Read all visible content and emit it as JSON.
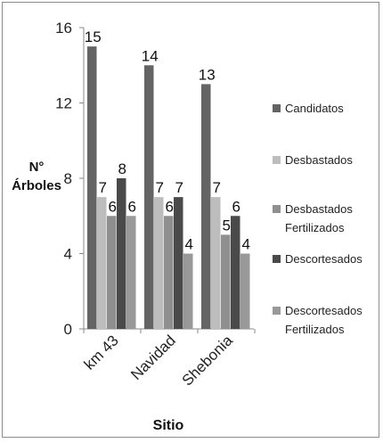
{
  "chart_data": {
    "type": "bar",
    "title": "",
    "xlabel": "Sitio",
    "ylabel": "N° Árboles",
    "ylabel_lines": [
      "N°",
      "Árboles"
    ],
    "categories": [
      "km 43",
      "Navidad",
      "Shebonia"
    ],
    "ylim": [
      0,
      16
    ],
    "yticks": [
      0,
      4,
      8,
      12,
      16
    ],
    "grid": false,
    "legend_position": "right",
    "series": [
      {
        "name": "Candidatos",
        "legend_lines": [
          "Candidatos"
        ],
        "color": "#646464",
        "values": [
          15,
          14,
          13
        ]
      },
      {
        "name": "Desbastados",
        "legend_lines": [
          "Desbastados"
        ],
        "color": "#bdbdbd",
        "values": [
          7,
          7,
          7
        ]
      },
      {
        "name": "Desbastados Fertilizados",
        "legend_lines": [
          "Desbastados",
          "Fertilizados"
        ],
        "color": "#8f8f8f",
        "values": [
          6,
          6,
          5
        ]
      },
      {
        "name": "Descortesados",
        "legend_lines": [
          "Descortesados"
        ],
        "color": "#4a4a4a",
        "values": [
          8,
          7,
          6
        ]
      },
      {
        "name": "Descortesados Fertilizados",
        "legend_lines": [
          "Descortesados",
          "Fertilizados"
        ],
        "color": "#999999",
        "values": [
          6,
          4,
          4
        ]
      }
    ],
    "data_labels_shown": true
  }
}
